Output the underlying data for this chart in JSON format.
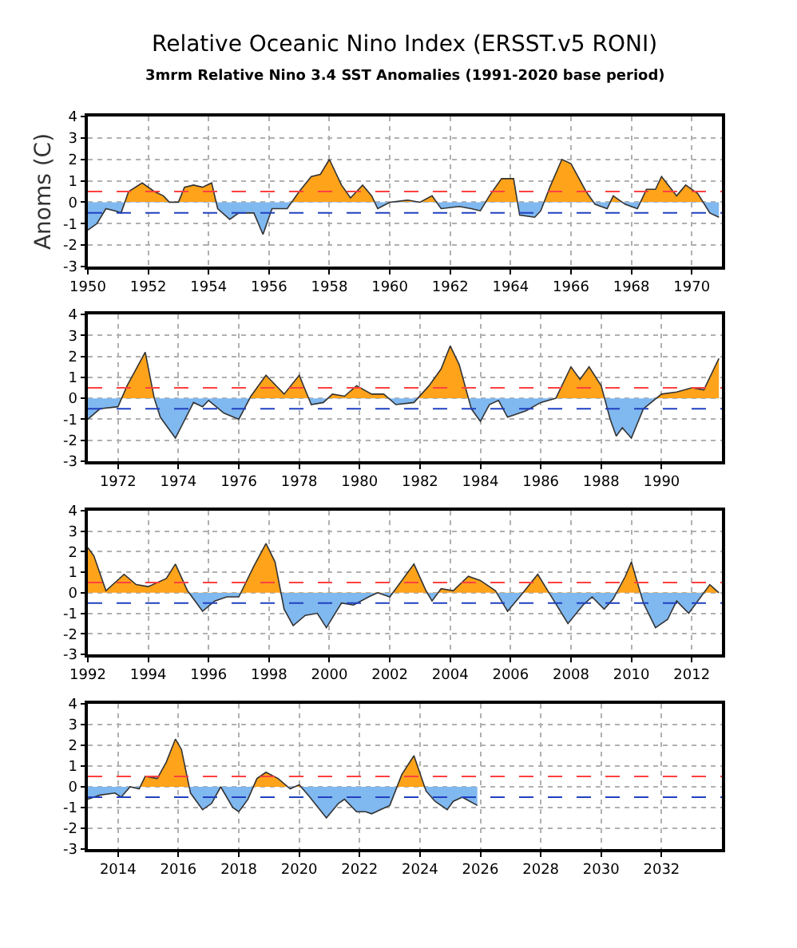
{
  "chart_data": [
    {
      "type": "area",
      "title": "Relative Oceanic Nino Index (ERSST.v5 RONI)",
      "subtitle": "3mrm Relative Nino 3.4 SST Anomalies (1991-2020 base period)",
      "ylabel": "Anoms (C)",
      "colors": [
        "#ffa31a",
        "#80b8f0"
      ],
      "x": [
        1950.0,
        1950.3,
        1950.6,
        1950.9,
        1951.1,
        1951.35,
        1951.8,
        1952.2,
        1952.5,
        1952.7,
        1953.0,
        1953.2,
        1953.5,
        1953.8,
        1954.1,
        1954.3,
        1954.7,
        1955.0,
        1955.5,
        1955.8,
        1956.1,
        1956.6,
        1957.0,
        1957.4,
        1957.7,
        1958.0,
        1958.4,
        1958.7,
        1959.1,
        1959.4,
        1959.6,
        1960.0,
        1960.6,
        1961.0,
        1961.4,
        1961.7,
        1962.3,
        1962.7,
        1963.0,
        1963.3,
        1963.7,
        1964.1,
        1964.3,
        1964.8,
        1965.0,
        1965.3,
        1965.7,
        1966.0,
        1966.5,
        1966.8,
        1967.2,
        1967.4,
        1967.8,
        1968.2,
        1968.5,
        1968.8,
        1969.0,
        1969.5,
        1969.8,
        1970.2,
        1970.6,
        1970.9
      ],
      "series": [
        {
          "color": "#333333",
          "values": [
            -1.3,
            -1.0,
            -0.3,
            -0.4,
            -0.5,
            0.5,
            0.9,
            0.5,
            0.3,
            0.0,
            0.0,
            0.7,
            0.8,
            0.7,
            0.9,
            -0.3,
            -0.8,
            -0.5,
            -0.5,
            -1.5,
            -0.3,
            -0.3,
            0.5,
            1.2,
            1.3,
            2.0,
            0.8,
            0.2,
            0.8,
            0.3,
            -0.3,
            0.0,
            0.1,
            0.0,
            0.3,
            -0.3,
            -0.2,
            -0.3,
            -0.4,
            0.3,
            1.1,
            1.1,
            -0.6,
            -0.7,
            -0.4,
            0.7,
            2.0,
            1.8,
            0.5,
            -0.1,
            -0.3,
            0.3,
            -0.1,
            -0.3,
            0.6,
            0.6,
            1.2,
            0.3,
            0.8,
            0.4,
            -0.5,
            -0.7
          ]
        }
      ],
      "xlim": [
        1950,
        1971
      ],
      "xticks": [
        1950,
        1952,
        1954,
        1956,
        1958,
        1960,
        1962,
        1964,
        1966,
        1968,
        1970
      ],
      "ylim": [
        -3,
        4
      ],
      "yticks": [
        -3,
        -2,
        -1,
        0,
        1,
        2,
        3,
        4
      ],
      "grid": true,
      "ref_lines": [
        {
          "axis": "y",
          "value": 0.5,
          "color": "#ff4040",
          "line_style": "dashed"
        },
        {
          "axis": "y",
          "value": -0.5,
          "color": "#2040c0",
          "line_style": "dashed"
        }
      ]
    },
    {
      "type": "area",
      "colors": [
        "#ffa31a",
        "#80b8f0"
      ],
      "x": [
        1971.0,
        1971.4,
        1972.0,
        1972.3,
        1972.6,
        1972.9,
        1973.2,
        1973.4,
        1973.9,
        1974.5,
        1974.8,
        1975.0,
        1975.5,
        1976.0,
        1976.4,
        1976.9,
        1977.5,
        1978.0,
        1978.4,
        1978.8,
        1979.1,
        1979.5,
        1979.9,
        1980.4,
        1980.8,
        1981.2,
        1981.8,
        1982.3,
        1982.7,
        1983.0,
        1983.3,
        1983.7,
        1984.0,
        1984.3,
        1984.6,
        1984.9,
        1985.5,
        1986.0,
        1986.5,
        1987.0,
        1987.3,
        1987.6,
        1988.0,
        1988.3,
        1988.5,
        1988.7,
        1989.0,
        1989.4,
        1990.0,
        1990.5,
        1991.0,
        1991.4,
        1991.9
      ],
      "series": [
        {
          "color": "#333333",
          "values": [
            -1.0,
            -0.5,
            -0.4,
            0.6,
            1.4,
            2.2,
            0.0,
            -0.9,
            -1.9,
            -0.2,
            -0.4,
            -0.1,
            -0.7,
            -1.0,
            0.1,
            1.1,
            0.2,
            1.1,
            -0.3,
            -0.2,
            0.2,
            0.1,
            0.6,
            0.2,
            0.2,
            -0.3,
            -0.2,
            0.6,
            1.4,
            2.5,
            1.6,
            -0.5,
            -1.1,
            -0.3,
            -0.1,
            -0.9,
            -0.6,
            -0.2,
            0.0,
            1.5,
            0.9,
            1.5,
            0.6,
            -1.0,
            -1.8,
            -1.4,
            -1.9,
            -0.5,
            0.2,
            0.3,
            0.5,
            0.4,
            1.9
          ]
        }
      ],
      "xlim": [
        1971,
        1992
      ],
      "xticks": [
        1972,
        1974,
        1976,
        1978,
        1980,
        1982,
        1984,
        1986,
        1988,
        1990
      ],
      "ylim": [
        -3,
        4
      ],
      "yticks": [
        -3,
        -2,
        -1,
        0,
        1,
        2,
        3,
        4
      ],
      "grid": true,
      "ref_lines": [
        {
          "axis": "y",
          "value": 0.5,
          "color": "#ff4040",
          "line_style": "dashed"
        },
        {
          "axis": "y",
          "value": -0.5,
          "color": "#2040c0",
          "line_style": "dashed"
        }
      ]
    },
    {
      "type": "area",
      "colors": [
        "#ffa31a",
        "#80b8f0"
      ],
      "x": [
        1992.0,
        1992.2,
        1992.6,
        1993.2,
        1993.6,
        1994.0,
        1994.6,
        1994.9,
        1995.3,
        1995.8,
        1996.2,
        1996.6,
        1997.0,
        1997.5,
        1997.9,
        1998.2,
        1998.5,
        1998.8,
        1999.2,
        1999.6,
        1999.9,
        2000.4,
        2000.8,
        2001.3,
        2001.6,
        2002.0,
        2002.4,
        2002.8,
        2003.2,
        2003.4,
        2003.7,
        2004.1,
        2004.6,
        2005.0,
        2005.5,
        2005.9,
        2006.3,
        2006.9,
        2007.4,
        2007.9,
        2008.4,
        2008.7,
        2009.1,
        2009.4,
        2009.8,
        2010.0,
        2010.4,
        2010.8,
        2011.2,
        2011.5,
        2011.9,
        2012.3,
        2012.6,
        2012.9
      ],
      "series": [
        {
          "color": "#333333",
          "values": [
            2.2,
            1.8,
            0.1,
            0.9,
            0.4,
            0.3,
            0.7,
            1.4,
            0.1,
            -0.9,
            -0.4,
            -0.2,
            -0.2,
            1.3,
            2.4,
            1.5,
            -0.8,
            -1.6,
            -1.1,
            -1.0,
            -1.7,
            -0.5,
            -0.6,
            -0.2,
            0.0,
            -0.2,
            0.6,
            1.4,
            0.1,
            -0.4,
            0.2,
            0.1,
            0.8,
            0.6,
            0.1,
            -0.9,
            -0.2,
            0.9,
            -0.3,
            -1.5,
            -0.6,
            -0.2,
            -0.8,
            -0.3,
            0.8,
            1.5,
            -0.5,
            -1.7,
            -1.3,
            -0.4,
            -1.0,
            -0.2,
            0.4,
            0.0
          ]
        }
      ],
      "xlim": [
        1992,
        2013
      ],
      "xticks": [
        1992,
        1994,
        1996,
        1998,
        2000,
        2002,
        2004,
        2006,
        2008,
        2010,
        2012
      ],
      "ylim": [
        -3,
        4
      ],
      "yticks": [
        -3,
        -2,
        -1,
        0,
        1,
        2,
        3,
        4
      ],
      "grid": true,
      "ref_lines": [
        {
          "axis": "y",
          "value": 0.5,
          "color": "#ff4040",
          "line_style": "dashed"
        },
        {
          "axis": "y",
          "value": -0.5,
          "color": "#2040c0",
          "line_style": "dashed"
        }
      ]
    },
    {
      "type": "area",
      "colors": [
        "#ffa31a",
        "#80b8f0"
      ],
      "x": [
        2013.0,
        2013.4,
        2013.9,
        2014.1,
        2014.4,
        2014.7,
        2014.9,
        2015.3,
        2015.6,
        2015.9,
        2016.1,
        2016.4,
        2016.8,
        2017.1,
        2017.4,
        2017.8,
        2018.0,
        2018.3,
        2018.6,
        2018.9,
        2019.3,
        2019.7,
        2020.0,
        2020.3,
        2020.9,
        2021.3,
        2021.5,
        2021.9,
        2022.2,
        2022.4,
        2022.7,
        2023.0,
        2023.4,
        2023.8,
        2024.2,
        2024.5,
        2024.9,
        2025.1,
        2025.4,
        2025.9
      ],
      "series": [
        {
          "color": "#333333",
          "values": [
            -0.6,
            -0.4,
            -0.3,
            -0.5,
            0.0,
            -0.1,
            0.5,
            0.4,
            1.2,
            2.3,
            1.8,
            -0.3,
            -1.1,
            -0.8,
            0.0,
            -1.0,
            -1.2,
            -0.6,
            0.4,
            0.7,
            0.4,
            -0.1,
            0.1,
            -0.4,
            -1.5,
            -0.8,
            -0.6,
            -1.2,
            -1.2,
            -1.3,
            -1.1,
            -0.9,
            0.6,
            1.5,
            -0.2,
            -0.7,
            -1.1,
            -0.7,
            -0.5,
            -0.9
          ]
        }
      ],
      "xlim": [
        2013,
        2034
      ],
      "xticks": [
        2014,
        2016,
        2018,
        2020,
        2022,
        2024,
        2026,
        2028,
        2030,
        2032
      ],
      "ylim": [
        -3,
        4
      ],
      "yticks": [
        -3,
        -2,
        -1,
        0,
        1,
        2,
        3,
        4
      ],
      "grid": true,
      "ref_lines": [
        {
          "axis": "y",
          "value": 0.5,
          "color": "#ff4040",
          "line_style": "dashed"
        },
        {
          "axis": "y",
          "value": -0.5,
          "color": "#2040c0",
          "line_style": "dashed"
        }
      ]
    }
  ]
}
